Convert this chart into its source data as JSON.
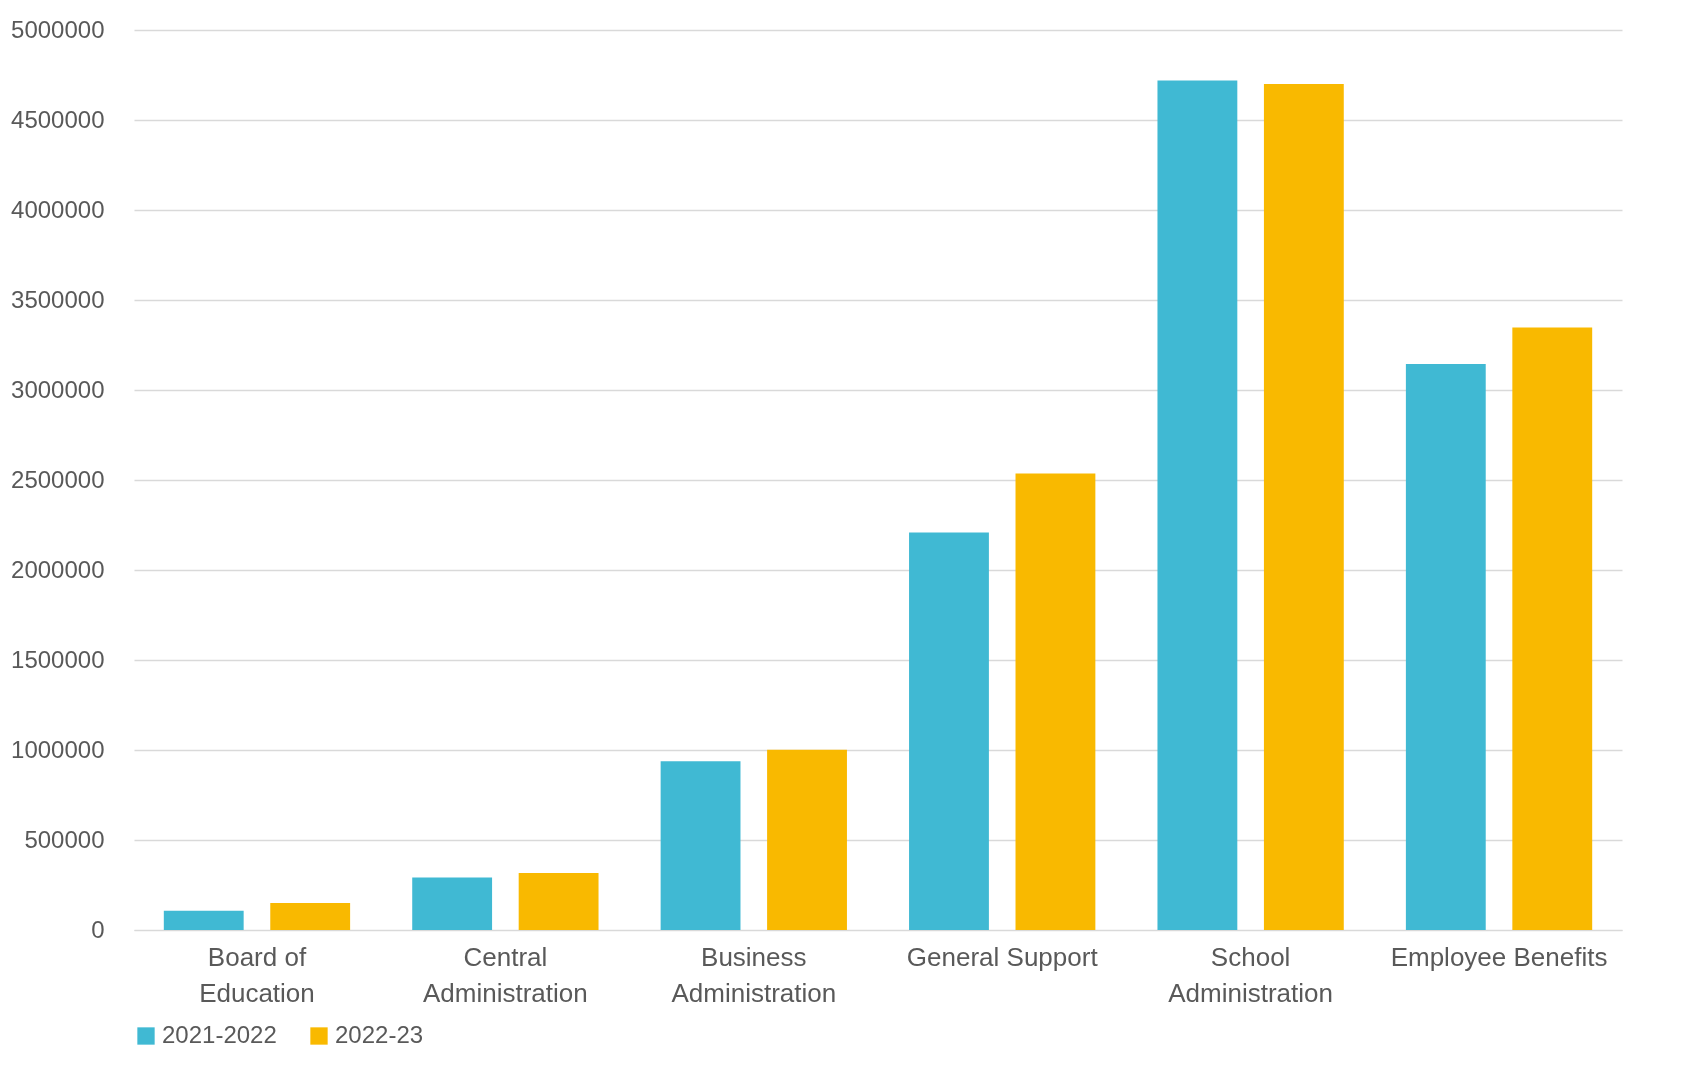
{
  "chart_data": {
    "type": "bar",
    "categories": [
      "Board of Education",
      "Central Administration",
      "Business Administration",
      "General Support",
      "School Administration",
      "Employee Benefits"
    ],
    "series": [
      {
        "name": "2021-2022",
        "color": "#40b9d3",
        "values": [
          107000,
          292000,
          937000,
          2208000,
          4720000,
          3144000
        ]
      },
      {
        "name": "2022-23",
        "color": "#f9b900",
        "values": [
          150000,
          316000,
          1002000,
          2536000,
          4700000,
          3347000
        ]
      }
    ],
    "ylim": [
      0,
      5000000
    ],
    "yticks": [
      0,
      500000,
      1000000,
      1500000,
      2000000,
      2500000,
      3000000,
      3500000,
      4000000,
      4500000,
      5000000
    ],
    "grid": "y",
    "legend": "bottom"
  }
}
